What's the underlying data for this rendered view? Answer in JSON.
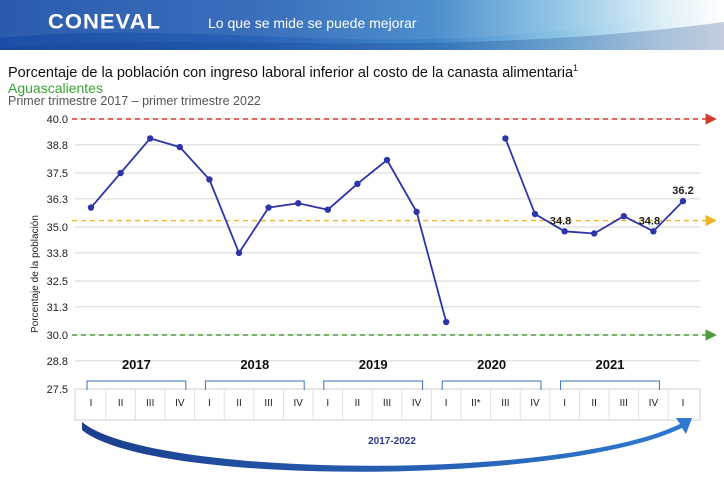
{
  "header": {
    "brand": "CONEVAL",
    "slogan": "Lo que se mide se puede mejorar"
  },
  "chart_data": {
    "type": "line",
    "title": "Porcentaje de la población con ingreso laboral inferior al costo de la canasta alimentaria",
    "title_footnote": "1",
    "subtitle": "Aguascalientes",
    "period": "Primer trimestre 2017 – primer trimestre 2022",
    "ylabel": "Porcentaje de la población",
    "ylim": [
      27.5,
      40.0
    ],
    "yticks": [
      "27.5",
      "28.8",
      "30.0",
      "31.3",
      "32.5",
      "33.8",
      "35.0",
      "36.3",
      "37.5",
      "38.8",
      "40.0"
    ],
    "quarters": [
      "I",
      "II",
      "III",
      "IV",
      "I",
      "II",
      "III",
      "IV",
      "I",
      "II",
      "III",
      "IV",
      "I",
      "II*",
      "III",
      "IV",
      "I",
      "II",
      "III",
      "IV",
      "I"
    ],
    "years": [
      {
        "label": "2017",
        "start": 0,
        "end": 3
      },
      {
        "label": "2018",
        "start": 4,
        "end": 7
      },
      {
        "label": "2019",
        "start": 8,
        "end": 11
      },
      {
        "label": "2020",
        "start": 12,
        "end": 15
      },
      {
        "label": "2021",
        "start": 16,
        "end": 19
      }
    ],
    "series": [
      {
        "values": [
          35.9,
          37.5,
          39.1,
          38.7,
          37.2,
          33.8,
          35.9,
          36.1,
          35.8,
          37.0,
          38.1,
          35.7,
          30.6,
          null,
          39.1,
          35.6,
          34.8,
          34.7,
          35.5,
          34.8,
          36.2
        ],
        "color": "#2e35a8"
      }
    ],
    "data_labels": [
      {
        "index": 16,
        "text": "34.8"
      },
      {
        "index": 19,
        "text": "34.8"
      },
      {
        "index": 20,
        "text": "36.2"
      }
    ],
    "reference_lines": [
      {
        "value": 40.0,
        "color": "#d23a2e"
      },
      {
        "value": 35.3,
        "color": "#f0b323"
      },
      {
        "value": 30.0,
        "color": "#4a9b3a"
      }
    ],
    "range_label": "2017-2022",
    "grid": true
  },
  "colors": {
    "banner": "#1b4ea6",
    "series": "#2e35a8",
    "subtitle": "#3aa335"
  }
}
